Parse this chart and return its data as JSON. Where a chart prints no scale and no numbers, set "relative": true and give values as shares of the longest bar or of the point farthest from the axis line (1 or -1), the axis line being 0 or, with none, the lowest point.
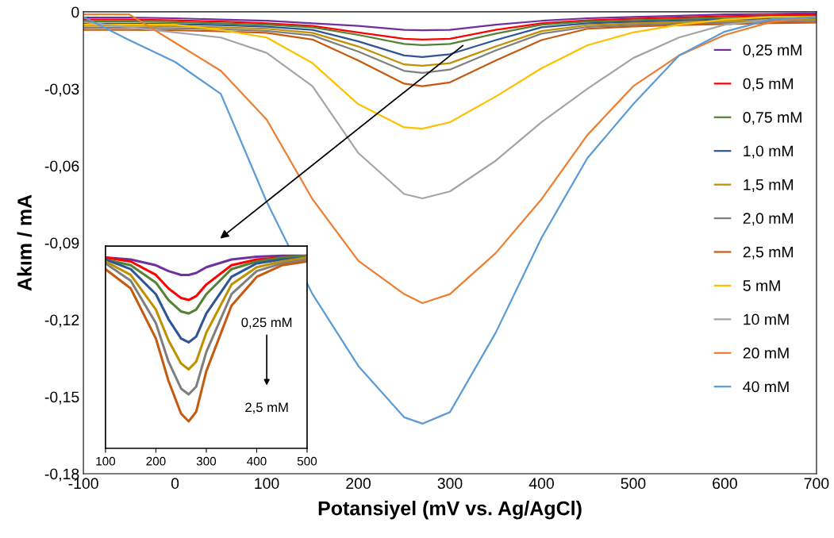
{
  "chart_data": [
    {
      "type": "line",
      "xlabel": "Potansiyel (mV vs. Ag/AgCl)",
      "ylabel": "Akım / mA",
      "xlim": [
        -100,
        700
      ],
      "xticks": [
        -100,
        0,
        100,
        200,
        300,
        400,
        500,
        600,
        700
      ],
      "ylim": [
        -0.18,
        0
      ],
      "yticks": [
        {
          "value": -0.18,
          "label": "-0,18"
        },
        {
          "value": -0.15,
          "label": "-0,15"
        },
        {
          "value": -0.12,
          "label": "-0,12"
        },
        {
          "value": -0.09,
          "label": "-0,09"
        },
        {
          "value": -0.06,
          "label": "-0,06"
        },
        {
          "value": -0.03,
          "label": "-0,03"
        },
        {
          "value": 0,
          "label": "0"
        }
      ],
      "grid": false,
      "legend": "right",
      "marker": "none",
      "line_style": "solid",
      "x": [
        -100,
        -50,
        0,
        50,
        100,
        150,
        200,
        250,
        270,
        300,
        350,
        400,
        450,
        500,
        550,
        600,
        650,
        700
      ],
      "series": [
        {
          "name": "0,25 mM",
          "color": "#7030a0",
          "values": [
            -0.0022,
            -0.0022,
            -0.0025,
            -0.003,
            -0.0035,
            -0.0045,
            -0.0055,
            -0.007,
            -0.0072,
            -0.007,
            -0.005,
            -0.0035,
            -0.0025,
            -0.002,
            -0.0015,
            -0.001,
            -0.0008,
            -0.0006
          ]
        },
        {
          "name": "0,5 mM",
          "color": "#ff0000",
          "values": [
            -0.003,
            -0.003,
            -0.0033,
            -0.0038,
            -0.0045,
            -0.0055,
            -0.008,
            -0.0105,
            -0.0108,
            -0.0105,
            -0.007,
            -0.0045,
            -0.0033,
            -0.0027,
            -0.0022,
            -0.0017,
            -0.0014,
            -0.0012
          ]
        },
        {
          "name": "0,75 mM",
          "color": "#548235",
          "values": [
            -0.0038,
            -0.0038,
            -0.004,
            -0.0045,
            -0.005,
            -0.006,
            -0.009,
            -0.0125,
            -0.013,
            -0.0125,
            -0.0085,
            -0.005,
            -0.0038,
            -0.0033,
            -0.0028,
            -0.0024,
            -0.002,
            -0.0018
          ]
        },
        {
          "name": "1,0 mM",
          "color": "#2f5597",
          "values": [
            -0.0046,
            -0.0046,
            -0.0048,
            -0.0052,
            -0.0058,
            -0.007,
            -0.0115,
            -0.017,
            -0.0176,
            -0.0165,
            -0.011,
            -0.006,
            -0.0045,
            -0.0039,
            -0.0034,
            -0.003,
            -0.0026,
            -0.0024
          ]
        },
        {
          "name": "1,5 mM",
          "color": "#bf9000",
          "values": [
            -0.0054,
            -0.0054,
            -0.0056,
            -0.006,
            -0.0066,
            -0.0082,
            -0.0135,
            -0.0205,
            -0.021,
            -0.02,
            -0.0135,
            -0.0075,
            -0.0052,
            -0.0045,
            -0.004,
            -0.0036,
            -0.0032,
            -0.003
          ]
        },
        {
          "name": "2,0 mM",
          "color": "#7f7f7f",
          "values": [
            -0.0062,
            -0.0062,
            -0.0064,
            -0.0068,
            -0.0074,
            -0.0092,
            -0.0155,
            -0.023,
            -0.0238,
            -0.0225,
            -0.015,
            -0.0085,
            -0.0059,
            -0.0051,
            -0.0046,
            -0.0042,
            -0.0038,
            -0.0036
          ]
        },
        {
          "name": "2,5 mM",
          "color": "#c55a11",
          "values": [
            -0.007,
            -0.007,
            -0.0072,
            -0.0076,
            -0.0082,
            -0.0108,
            -0.019,
            -0.028,
            -0.029,
            -0.0275,
            -0.019,
            -0.011,
            -0.0066,
            -0.0057,
            -0.0052,
            -0.0048,
            -0.0044,
            -0.0042
          ]
        },
        {
          "name": "5 mM",
          "color": "#ffc000",
          "values": [
            -0.005,
            -0.005,
            -0.005,
            -0.007,
            -0.01,
            -0.02,
            -0.036,
            -0.045,
            -0.0455,
            -0.043,
            -0.033,
            -0.022,
            -0.013,
            -0.008,
            -0.005,
            -0.003,
            -0.002,
            -0.002
          ]
        },
        {
          "name": "10 mM",
          "color": "#a5a5a5",
          "values": [
            -0.004,
            -0.006,
            -0.008,
            -0.01,
            -0.016,
            -0.029,
            -0.055,
            -0.071,
            -0.0727,
            -0.07,
            -0.058,
            -0.043,
            -0.03,
            -0.018,
            -0.01,
            -0.005,
            -0.003,
            -0.002
          ]
        },
        {
          "name": "20 mM",
          "color": "#ed7d31",
          "values": [
            -0.001,
            -0.001,
            -0.012,
            -0.023,
            -0.042,
            -0.073,
            -0.097,
            -0.11,
            -0.1135,
            -0.11,
            -0.094,
            -0.073,
            -0.048,
            -0.029,
            -0.017,
            -0.009,
            -0.004,
            -0.002
          ]
        },
        {
          "name": "40 mM",
          "color": "#5b9bd5",
          "values": [
            -0.002,
            -0.011,
            -0.0195,
            -0.032,
            -0.074,
            -0.11,
            -0.138,
            -0.158,
            -0.1605,
            -0.156,
            -0.125,
            -0.088,
            -0.057,
            -0.036,
            -0.017,
            -0.0077,
            -0.003,
            -0.002
          ]
        }
      ]
    },
    {
      "type": "line",
      "relative": true,
      "xlim": [
        100,
        500
      ],
      "xticks": [
        100,
        200,
        300,
        400,
        500
      ],
      "tick_labels": "x",
      "grid": false,
      "marker": "none",
      "line_style": "solid",
      "annotations": [
        "0,25 mM",
        "2,5 mM"
      ],
      "x": [
        100,
        150,
        200,
        225,
        250,
        265,
        280,
        300,
        350,
        400,
        450,
        500
      ],
      "series": [
        {
          "color": "#7030a0",
          "values": [
            0.99,
            0.98,
            0.95,
            0.92,
            0.9,
            0.9,
            0.91,
            0.94,
            0.98,
            0.995,
            1.0,
            1.0
          ]
        },
        {
          "color": "#ff0000",
          "values": [
            0.99,
            0.97,
            0.9,
            0.83,
            0.78,
            0.77,
            0.79,
            0.85,
            0.95,
            0.98,
            0.99,
            1.0
          ]
        },
        {
          "color": "#548235",
          "values": [
            0.98,
            0.95,
            0.86,
            0.77,
            0.71,
            0.7,
            0.72,
            0.8,
            0.93,
            0.97,
            0.99,
            1.0
          ]
        },
        {
          "color": "#2f5597",
          "values": [
            0.98,
            0.93,
            0.8,
            0.67,
            0.57,
            0.55,
            0.58,
            0.7,
            0.89,
            0.96,
            0.98,
            0.99
          ]
        },
        {
          "color": "#bf9000",
          "values": [
            0.97,
            0.9,
            0.72,
            0.56,
            0.44,
            0.41,
            0.45,
            0.6,
            0.85,
            0.94,
            0.97,
            0.99
          ]
        },
        {
          "color": "#7f7f7f",
          "values": [
            0.96,
            0.87,
            0.65,
            0.45,
            0.31,
            0.28,
            0.32,
            0.5,
            0.8,
            0.92,
            0.96,
            0.98
          ]
        },
        {
          "color": "#c55a11",
          "values": [
            0.93,
            0.83,
            0.57,
            0.35,
            0.18,
            0.14,
            0.19,
            0.4,
            0.74,
            0.89,
            0.95,
            0.97
          ]
        }
      ]
    }
  ]
}
